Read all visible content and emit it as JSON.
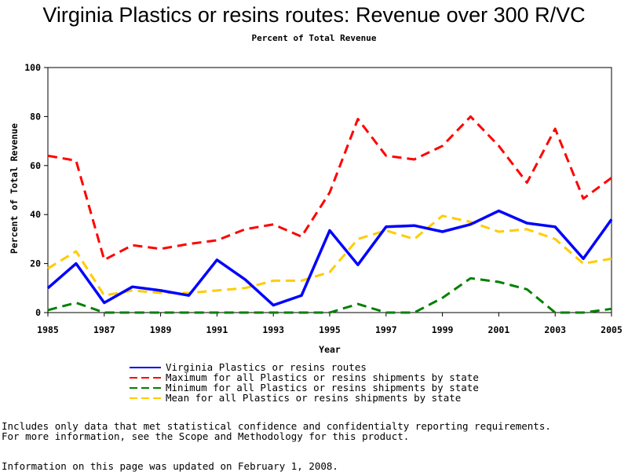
{
  "chart_data": {
    "type": "line",
    "title": "Virginia Plastics or resins routes: Revenue over 300 R/VC",
    "subtitle": "Percent of Total Revenue",
    "xlabel": "Year",
    "ylabel": "Percent of Total Revenue",
    "xlim": [
      1985,
      2005
    ],
    "ylim": [
      0,
      100
    ],
    "x_ticks": [
      "1985",
      "1987",
      "1989",
      "1991",
      "1993",
      "1995",
      "1997",
      "1999",
      "2001",
      "2003",
      "2005"
    ],
    "y_ticks": [
      "0",
      "20",
      "40",
      "60",
      "80",
      "100"
    ],
    "grid": false,
    "legend_position": "bottom",
    "x": [
      1985,
      1986,
      1987,
      1988,
      1989,
      1990,
      1991,
      1992,
      1993,
      1994,
      1995,
      1996,
      1997,
      1998,
      1999,
      2000,
      2001,
      2002,
      2003,
      2004,
      2005
    ],
    "series": [
      {
        "name": "Virginia Plastics or resins routes",
        "color": "#0000ff",
        "style": "solid",
        "values": [
          10,
          20,
          4,
          10.5,
          9,
          7,
          21.5,
          13.5,
          3,
          7,
          33.5,
          19.5,
          35,
          35.5,
          33,
          36,
          41.5,
          36.5,
          35,
          22,
          38
        ]
      },
      {
        "name": "Maximum for all Plastics or resins shipments by state",
        "color": "#ff0000",
        "style": "dashed",
        "values": [
          64,
          62,
          21.5,
          27.5,
          26,
          28,
          29.5,
          34,
          36,
          31,
          49,
          79,
          64,
          62.5,
          68,
          80,
          68,
          53,
          75,
          46.5,
          55
        ]
      },
      {
        "name": "Minimum for all Plastics or resins shipments by state",
        "color": "#008000",
        "style": "dashed",
        "values": [
          1,
          4,
          0,
          0,
          0,
          0,
          0,
          0,
          0,
          0,
          0,
          3.5,
          0,
          0,
          6,
          14,
          12.5,
          9.5,
          0,
          0,
          1.5
        ]
      },
      {
        "name": "Mean for all Plastics or resins shipments by state",
        "color": "#ffcc00",
        "style": "dashed",
        "values": [
          18,
          25,
          7,
          9,
          8,
          8,
          9,
          10,
          13,
          13,
          16.5,
          30,
          33.5,
          30,
          39.5,
          37,
          33,
          34,
          30,
          20,
          22
        ]
      }
    ]
  },
  "notes": {
    "line1": "Includes only data that met statistical confidence and confidentialty reporting requirements.",
    "line2": "For more information, see the Scope and Methodology for this product.",
    "line3": "Information on this page was updated on February 1, 2008."
  }
}
